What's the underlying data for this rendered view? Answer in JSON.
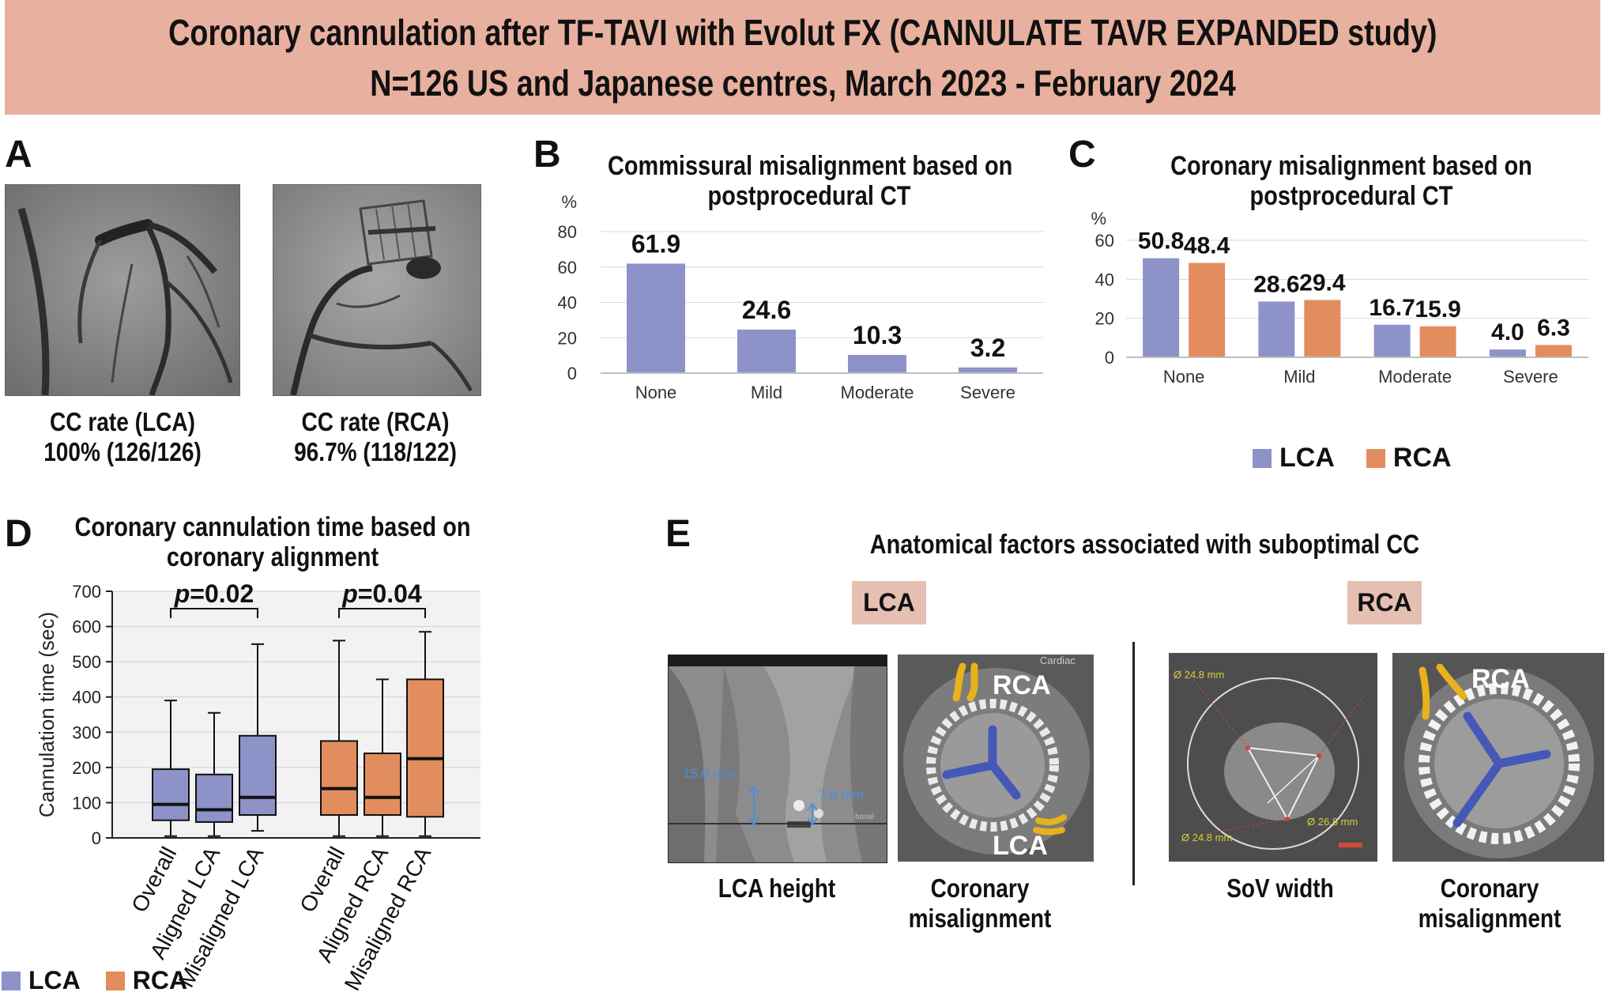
{
  "header": {
    "line1": "Coronary cannulation after TF-TAVI with Evolut FX (CANNULATE TAVR EXPANDED study)",
    "line2": "N=126 US and Japanese centres, March 2023 - February 2024"
  },
  "colors": {
    "lca": "#8d92c8",
    "rca": "#e28d5e",
    "header_bg": "#e8b09e",
    "tag_bg": "#e6bfb3",
    "yellow": "#e8b21b",
    "blue": "#4558b8"
  },
  "panel_a": {
    "label": "A",
    "lca_caption_1": "CC rate (LCA)",
    "lca_caption_2": "100% (126/126)",
    "rca_caption_1": "CC rate (RCA)",
    "rca_caption_2": "96.7% (118/122)"
  },
  "panel_b": {
    "label": "B"
  },
  "panel_c": {
    "label": "C",
    "legend_lca": "LCA",
    "legend_rca": "RCA"
  },
  "panel_d": {
    "label": "D",
    "legend_lca": "LCA",
    "legend_rca": "RCA"
  },
  "panel_e": {
    "label": "E",
    "title": "Anatomical factors associated with suboptimal CC",
    "lca_tag": "LCA",
    "rca_tag": "RCA",
    "img1_m1": "15.0 mm",
    "img1_m2": "7.8 mm",
    "img1_tiny": "basal",
    "img2_rca": "RCA",
    "img2_lca": "LCA",
    "img2_corner": "Cardiac",
    "img3_m1": "Ø 24.8 mm",
    "img3_m2": "Ø 26.8 mm",
    "img3_m3": "Ø 24.8 mm",
    "img4_rca": "RCA",
    "cap1": "LCA height",
    "cap2a": "Coronary",
    "cap2b": "misalignment",
    "cap3": "SoV width",
    "cap4a": "Coronary",
    "cap4b": "misalignment"
  },
  "chart_data": [
    {
      "id": "B",
      "type": "bar",
      "title": "Commissural  misalignment based on postprocedural CT",
      "title_lines": [
        "Commissural  misalignment based on",
        "postprocedural CT"
      ],
      "ylabel": "%",
      "categories": [
        "None",
        "Mild",
        "Moderate",
        "Severe"
      ],
      "values": [
        61.9,
        24.6,
        10.3,
        3.2
      ],
      "value_labels": [
        "61.9",
        "24.6",
        "10.3",
        "3.2"
      ],
      "ylim": [
        0,
        80
      ],
      "yticks": [
        "0",
        "20",
        "40",
        "60",
        "80"
      ],
      "grid": true
    },
    {
      "id": "C",
      "type": "bar",
      "title": "Coronary misalignment based on postprocedural CT",
      "title_lines": [
        "Coronary misalignment based on",
        "postprocedural CT"
      ],
      "ylabel": "%",
      "categories": [
        "None",
        "Mild",
        "Moderate",
        "Severe"
      ],
      "series": [
        {
          "name": "LCA",
          "values": [
            50.8,
            28.6,
            16.7,
            4.0
          ],
          "labels": [
            "50.8",
            "28.6",
            "16.7",
            "4.0"
          ]
        },
        {
          "name": "RCA",
          "values": [
            48.4,
            29.4,
            15.9,
            6.3
          ],
          "labels": [
            "48.4",
            "29.4",
            "15.9",
            "6.3"
          ]
        }
      ],
      "ylim": [
        0,
        60
      ],
      "yticks": [
        "0",
        "20",
        "40",
        "60"
      ],
      "legend": "bottom",
      "grid": true
    },
    {
      "id": "D",
      "type": "box",
      "title": "Coronary cannulation time based on coronary alignment",
      "title_lines": [
        "Coronary cannulation time based on",
        "coronary alignment"
      ],
      "ylabel": "Cannulation time (sec)",
      "ylim": [
        0,
        700
      ],
      "yticks": [
        "0",
        "100",
        "200",
        "300",
        "400",
        "500",
        "600",
        "700"
      ],
      "categories": [
        "Overall",
        "Aligned LCA",
        "Misaligned LCA",
        "Overall",
        "Aligned RCA",
        "Misaligned RCA"
      ],
      "boxes": [
        {
          "group": "LCA",
          "min": 5,
          "q1": 50,
          "median": 95,
          "q3": 195,
          "max": 390
        },
        {
          "group": "LCA",
          "min": 5,
          "q1": 45,
          "median": 80,
          "q3": 180,
          "max": 355
        },
        {
          "group": "LCA",
          "min": 20,
          "q1": 65,
          "median": 115,
          "q3": 290,
          "max": 550
        },
        {
          "group": "RCA",
          "min": 5,
          "q1": 65,
          "median": 140,
          "q3": 275,
          "max": 560
        },
        {
          "group": "RCA",
          "min": 5,
          "q1": 65,
          "median": 115,
          "q3": 240,
          "max": 450
        },
        {
          "group": "RCA",
          "min": 5,
          "q1": 60,
          "median": 225,
          "q3": 450,
          "max": 585
        }
      ],
      "comparisons": [
        {
          "p_symbol": "p",
          "p_rest": "=0.02",
          "between": [
            1,
            2
          ]
        },
        {
          "p_symbol": "p",
          "p_rest": "=0.04",
          "between": [
            4,
            5
          ]
        }
      ],
      "legend": "bottom-left",
      "grid": true
    }
  ]
}
